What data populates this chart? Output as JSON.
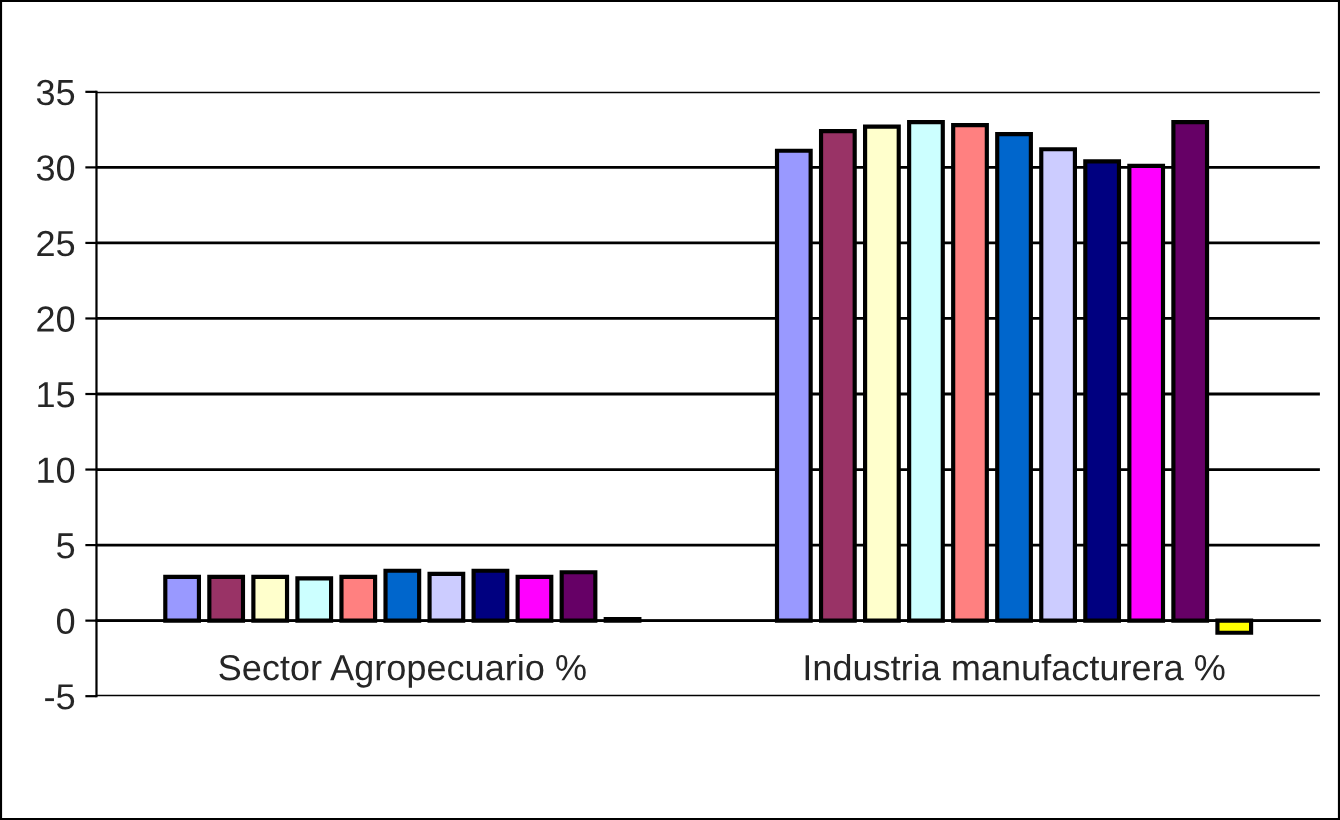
{
  "chart_data": {
    "type": "bar",
    "categories": [
      "Sector Agropecuario %",
      "Industria manufacturera %"
    ],
    "series": [
      {
        "color": "#9999ff",
        "values": [
          2.9,
          31.1
        ]
      },
      {
        "color": "#993366",
        "values": [
          2.9,
          32.4
        ]
      },
      {
        "color": "#ffffcc",
        "values": [
          2.9,
          32.7
        ]
      },
      {
        "color": "#ccffff",
        "values": [
          2.8,
          33.0
        ]
      },
      {
        "color": "#ff8080",
        "values": [
          2.9,
          32.8
        ]
      },
      {
        "color": "#0066cc",
        "values": [
          3.3,
          32.2
        ]
      },
      {
        "color": "#ccccff",
        "values": [
          3.1,
          31.2
        ]
      },
      {
        "color": "#000080",
        "values": [
          3.3,
          30.4
        ]
      },
      {
        "color": "#ff00ff",
        "values": [
          2.9,
          30.1
        ]
      },
      {
        "color": "#660066",
        "values": [
          3.2,
          33.0
        ]
      },
      {
        "color": "#ffff00",
        "values": [
          0.1,
          -0.8
        ]
      }
    ],
    "ylim": [
      -5,
      35
    ],
    "yticks": [
      -5,
      0,
      5,
      10,
      15,
      20,
      25,
      30,
      35
    ],
    "grid": "y",
    "legend": false
  }
}
